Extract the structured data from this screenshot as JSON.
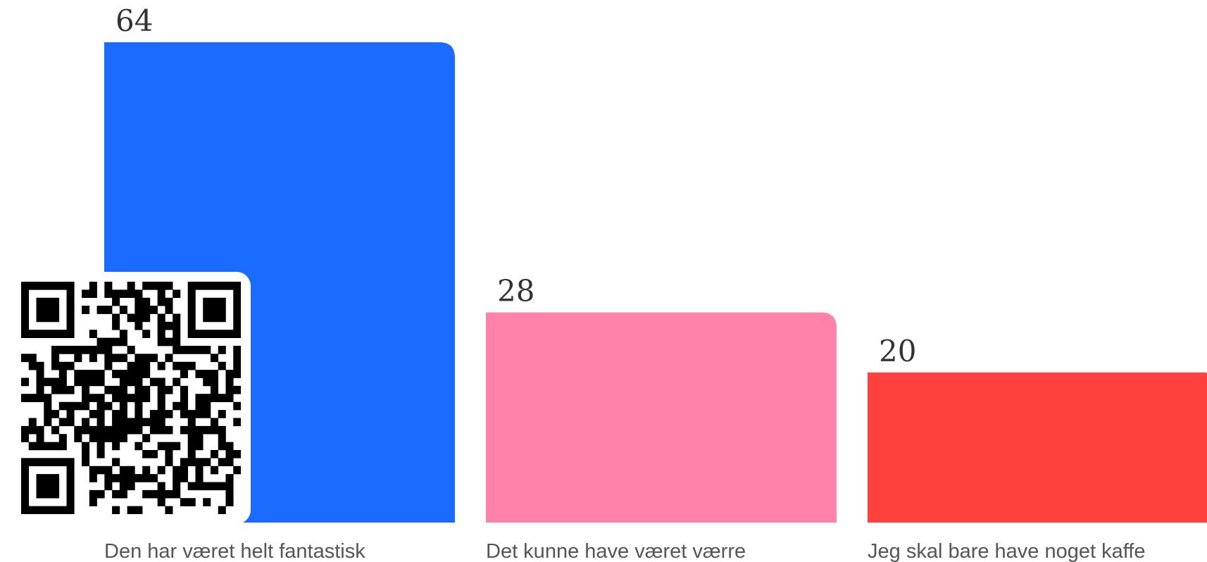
{
  "chart_data": {
    "type": "bar",
    "categories": [
      "Den har været helt fantastisk",
      "Det kunne have været værre",
      "Jeg skal bare have noget kaffe"
    ],
    "values": [
      64,
      28,
      20
    ],
    "colors": [
      "#1c6bff",
      "#ff82ab",
      "#ff413d"
    ],
    "title": "",
    "xlabel": "",
    "ylabel": "",
    "ylim": [
      0,
      64
    ],
    "grid": false,
    "legend": "none",
    "data_labels": [
      "64",
      "28",
      "20"
    ]
  },
  "overlay": {
    "qr_code": "qr-code-icon"
  }
}
